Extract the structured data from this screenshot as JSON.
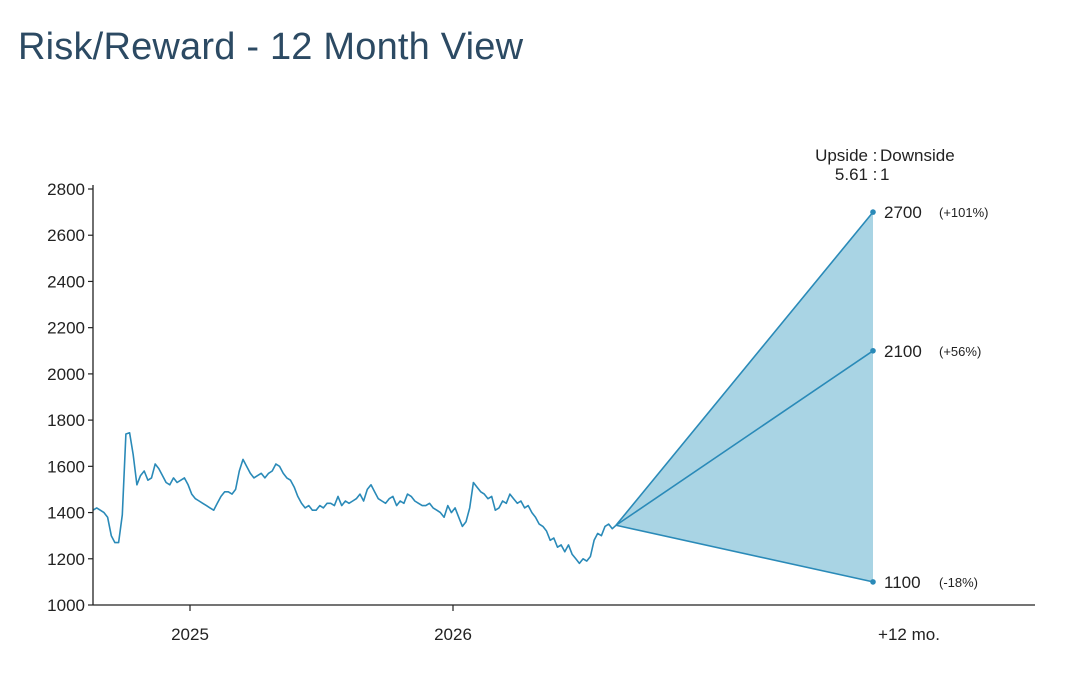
{
  "title": "Risk/Reward - 12 Month View",
  "ratio": {
    "header_upside": "Upside",
    "header_sep": ":",
    "header_downside": "Downside",
    "value_up": "5.61",
    "value_sep": ":",
    "value_down": "1"
  },
  "colors": {
    "line": "#2a8ab8",
    "fan_fill": "#a9d4e4",
    "title": "#2c4a63",
    "axis": "#222222"
  },
  "chart_data": {
    "type": "line",
    "x_tick_labels": [
      "2025",
      "2026",
      "+12 mo."
    ],
    "ylim": [
      1000,
      2800
    ],
    "y_ticks": [
      1000,
      1200,
      1400,
      1600,
      1800,
      2000,
      2200,
      2400,
      2600,
      2800
    ],
    "grid": false,
    "price_history": [
      1410,
      1420,
      1410,
      1400,
      1380,
      1300,
      1270,
      1270,
      1390,
      1740,
      1745,
      1650,
      1520,
      1560,
      1580,
      1540,
      1550,
      1610,
      1590,
      1560,
      1530,
      1520,
      1550,
      1530,
      1540,
      1550,
      1520,
      1480,
      1460,
      1450,
      1440,
      1430,
      1420,
      1410,
      1440,
      1470,
      1490,
      1490,
      1480,
      1500,
      1580,
      1630,
      1600,
      1570,
      1550,
      1560,
      1570,
      1550,
      1570,
      1580,
      1610,
      1600,
      1570,
      1550,
      1540,
      1510,
      1470,
      1440,
      1420,
      1430,
      1410,
      1410,
      1430,
      1420,
      1440,
      1440,
      1430,
      1470,
      1430,
      1450,
      1440,
      1450,
      1460,
      1480,
      1450,
      1500,
      1520,
      1490,
      1460,
      1450,
      1440,
      1460,
      1470,
      1430,
      1450,
      1440,
      1480,
      1470,
      1450,
      1440,
      1430,
      1430,
      1440,
      1420,
      1410,
      1400,
      1380,
      1430,
      1400,
      1420,
      1380,
      1340,
      1360,
      1420,
      1530,
      1510,
      1490,
      1480,
      1460,
      1470,
      1410,
      1420,
      1450,
      1440,
      1480,
      1460,
      1440,
      1450,
      1420,
      1430,
      1400,
      1380,
      1350,
      1340,
      1320,
      1280,
      1290,
      1250,
      1260,
      1230,
      1260,
      1220,
      1200,
      1180,
      1200,
      1190,
      1210,
      1280,
      1310,
      1300,
      1340,
      1350,
      1330,
      1345
    ],
    "targets": [
      {
        "name": "upside",
        "value": 2700,
        "label": "2700",
        "pct": "(+101%)"
      },
      {
        "name": "base",
        "value": 2100,
        "label": "2100",
        "pct": "(+56%)"
      },
      {
        "name": "downside",
        "value": 1100,
        "label": "1100",
        "pct": "(-18%)"
      }
    ]
  }
}
